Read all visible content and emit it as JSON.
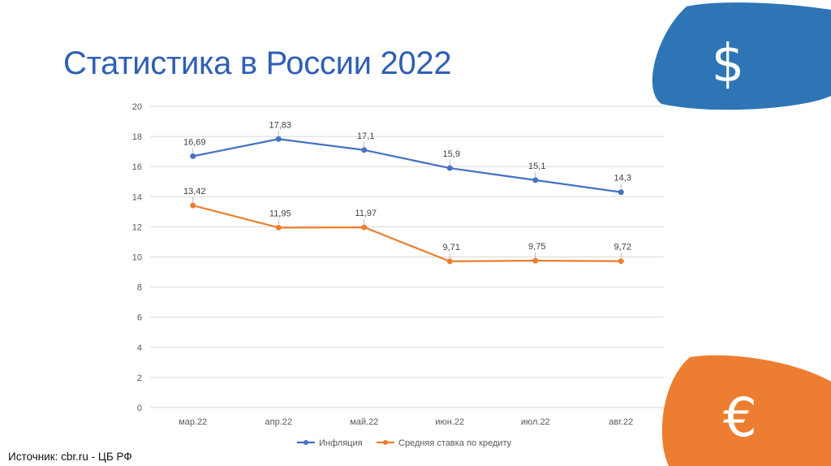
{
  "title": "Статистика в России 2022",
  "source": "Источник: cbr.ru - ЦБ РФ",
  "icons": {
    "dollar": {
      "name": "dollar-icon",
      "glyph": "$",
      "color": "#2e75b6"
    },
    "euro": {
      "name": "euro-icon",
      "glyph": "€",
      "color": "#ed7d31"
    }
  },
  "chart_data": {
    "type": "line",
    "title": "",
    "xlabel": "",
    "ylabel": "",
    "categories": [
      "мар.22",
      "апр.22",
      "май.22",
      "июн.22",
      "июл.22",
      "авг.22"
    ],
    "ylim": [
      0,
      20
    ],
    "yticks": [
      0,
      2,
      4,
      6,
      8,
      10,
      12,
      14,
      16,
      18,
      20
    ],
    "grid": true,
    "legend_position": "bottom",
    "series": [
      {
        "name": "Инфляция",
        "color": "#4472c4",
        "values": [
          16.69,
          17.83,
          17.1,
          15.9,
          15.1,
          14.3
        ],
        "labels": [
          "16,69",
          "17,83",
          "17,1",
          "15,9",
          "15,1",
          "14,3"
        ]
      },
      {
        "name": "Средняя ставка по кредиту",
        "color": "#ed7d31",
        "values": [
          13.42,
          11.95,
          11.97,
          9.71,
          9.75,
          9.72
        ],
        "labels": [
          "13,42",
          "11,95",
          "11,97",
          "9,71",
          "9,75",
          "9,72"
        ]
      }
    ]
  }
}
